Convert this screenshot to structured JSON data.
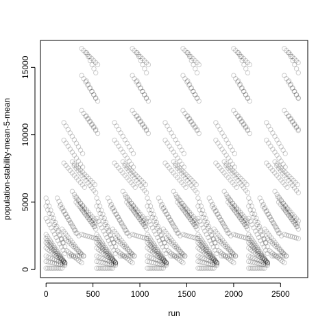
{
  "chart_data": {
    "type": "scatter",
    "title": "",
    "xlabel": "run",
    "ylabel": "population-stability-mean-5-mean",
    "xlim": [
      -60,
      2790
    ],
    "ylim": [
      -600,
      17000
    ],
    "x_ticks": [
      0,
      500,
      1000,
      1500,
      2000,
      2500
    ],
    "y_ticks": [
      0,
      5000,
      10000,
      15000
    ],
    "x_tick_labels": [
      "0",
      "500",
      "1000",
      "1500",
      "2000",
      "2500"
    ],
    "y_tick_labels": [
      "0",
      "5000",
      "10000",
      "15000"
    ],
    "grid": false,
    "legend": "none",
    "marker": "open-circle",
    "marker_color": "#000000",
    "marker_alpha": 0.2,
    "run_period": 540,
    "run_max": 2700,
    "clusters": [
      {
        "x0": 0,
        "y0": 5300,
        "dx": 180,
        "dy": -3300,
        "n": 12
      },
      {
        "x0": 0,
        "y0": 4700,
        "dx": 200,
        "dy": -3000,
        "n": 12
      },
      {
        "x0": 0,
        "y0": 3800,
        "dx": 200,
        "dy": -2600,
        "n": 12
      },
      {
        "x0": 0,
        "y0": 2600,
        "dx": 200,
        "dy": -2100,
        "n": 14
      },
      {
        "x0": 0,
        "y0": 2300,
        "dx": 200,
        "dy": -1800,
        "n": 14
      },
      {
        "x0": 0,
        "y0": 2000,
        "dx": 200,
        "dy": -1500,
        "n": 14
      },
      {
        "x0": 0,
        "y0": 1600,
        "dx": 200,
        "dy": -1100,
        "n": 12
      },
      {
        "x0": 0,
        "y0": 1000,
        "dx": 200,
        "dy": -600,
        "n": 10
      },
      {
        "x0": 0,
        "y0": 600,
        "dx": 200,
        "dy": -300,
        "n": 10
      },
      {
        "x0": 0,
        "y0": 100,
        "dx": 170,
        "dy": 0,
        "n": 10
      },
      {
        "x0": 120,
        "y0": 5300,
        "dx": 200,
        "dy": -2600,
        "n": 12
      },
      {
        "x0": 150,
        "y0": 4700,
        "dx": 200,
        "dy": -2200,
        "n": 12
      },
      {
        "x0": 170,
        "y0": 3000,
        "dx": 200,
        "dy": -1800,
        "n": 12
      },
      {
        "x0": 200,
        "y0": 2300,
        "dx": 200,
        "dy": -1300,
        "n": 12
      },
      {
        "x0": 220,
        "y0": 1400,
        "dx": 160,
        "dy": -900,
        "n": 10
      },
      {
        "x0": 250,
        "y0": 1000,
        "dx": 150,
        "dy": 0,
        "n": 8
      },
      {
        "x0": 190,
        "y0": 10900,
        "dx": 200,
        "dy": -2300,
        "n": 10
      },
      {
        "x0": 190,
        "y0": 9600,
        "dx": 200,
        "dy": -2000,
        "n": 10
      },
      {
        "x0": 190,
        "y0": 7900,
        "dx": 220,
        "dy": -1800,
        "n": 11
      },
      {
        "x0": 280,
        "y0": 8000,
        "dx": 240,
        "dy": -1700,
        "n": 12
      },
      {
        "x0": 300,
        "y0": 7700,
        "dx": 230,
        "dy": -2000,
        "n": 12
      },
      {
        "x0": 280,
        "y0": 5800,
        "dx": 240,
        "dy": -2400,
        "n": 12
      },
      {
        "x0": 310,
        "y0": 5400,
        "dx": 220,
        "dy": -1800,
        "n": 12
      },
      {
        "x0": 320,
        "y0": 5000,
        "dx": 200,
        "dy": -1800,
        "n": 12
      },
      {
        "x0": 370,
        "y0": 4600,
        "dx": 160,
        "dy": -1600,
        "n": 10
      },
      {
        "x0": 380,
        "y0": 2600,
        "dx": 150,
        "dy": -300,
        "n": 8
      },
      {
        "x0": 380,
        "y0": 16400,
        "dx": 170,
        "dy": -1200,
        "n": 9
      },
      {
        "x0": 380,
        "y0": 14400,
        "dx": 170,
        "dy": -1900,
        "n": 9
      },
      {
        "x0": 380,
        "y0": 11800,
        "dx": 170,
        "dy": -1700,
        "n": 9
      },
      {
        "x0": 430,
        "y0": 16100,
        "dx": 100,
        "dy": -1500,
        "n": 6
      },
      {
        "x0": 430,
        "y0": 14000,
        "dx": 100,
        "dy": -1300,
        "n": 6
      },
      {
        "x0": 430,
        "y0": 11400,
        "dx": 100,
        "dy": -1000,
        "n": 6
      }
    ]
  }
}
